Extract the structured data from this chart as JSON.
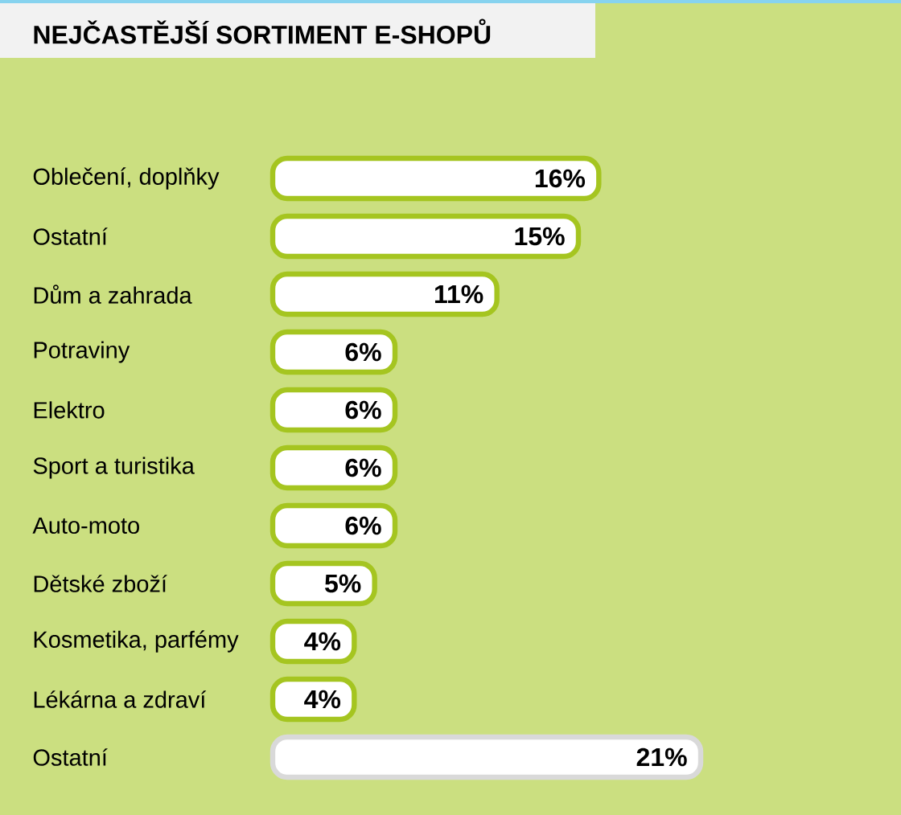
{
  "chart_data": {
    "type": "bar",
    "orientation": "horizontal",
    "title": "NEJČASTĚJŠÍ SORTIMENT E-SHOPŮ",
    "categories": [
      "Oblečení, doplňky",
      "Ostatní",
      "Dům a zahrada",
      "Potraviny",
      "Elektro",
      "Sport a turistika",
      "Auto-moto",
      "Dětské zboží",
      "Kosmetika, parfémy",
      "Lékárna a zdraví",
      "Ostatní"
    ],
    "values": [
      16,
      15,
      11,
      6,
      6,
      6,
      6,
      5,
      4,
      4,
      21
    ],
    "value_labels": [
      "16%",
      "15%",
      "11%",
      "6%",
      "6%",
      "6%",
      "6%",
      "5%",
      "4%",
      "4%",
      "21%"
    ],
    "colors": [
      "#a5c520",
      "#a5c520",
      "#a5c520",
      "#a5c520",
      "#a5c520",
      "#a5c520",
      "#a5c520",
      "#a5c520",
      "#a5c520",
      "#a5c520",
      "#d9d9d9"
    ]
  }
}
